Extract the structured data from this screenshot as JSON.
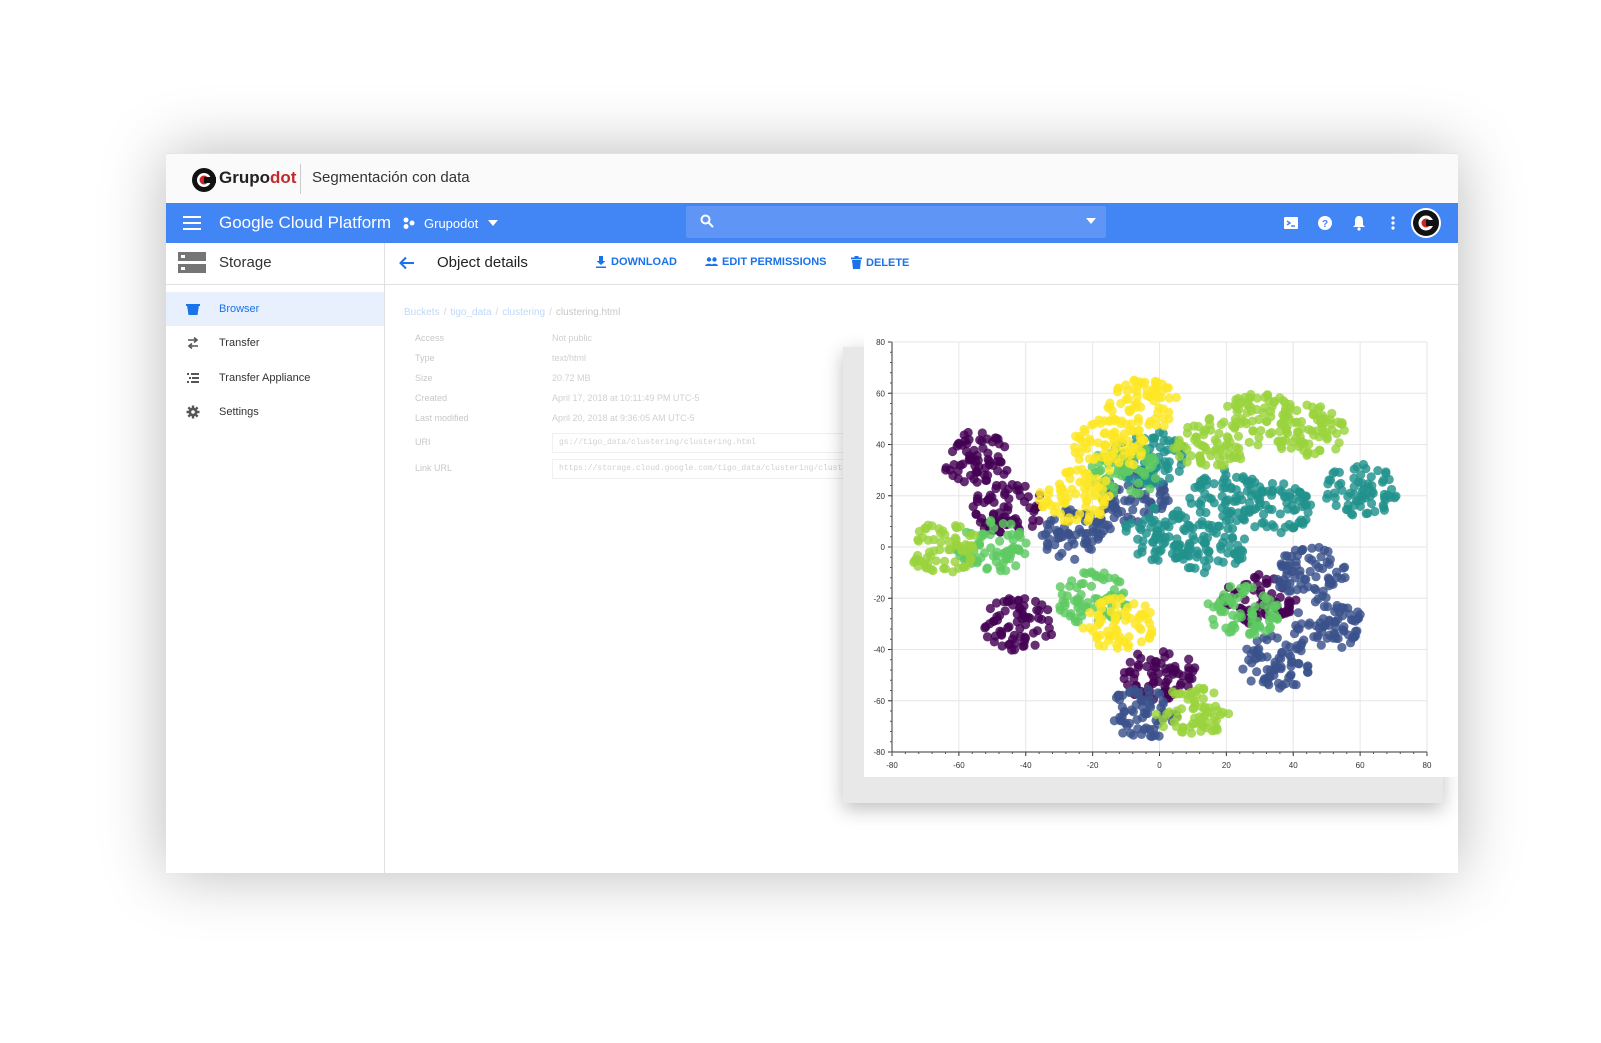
{
  "brand": {
    "name_main": "Grupo",
    "name_accent": "dot",
    "subtitle": "Segmentación con data"
  },
  "header": {
    "title": "Google Cloud Platform",
    "project": "Grupodot",
    "search_placeholder": "",
    "color": "#4285f4",
    "icons": [
      "cloud-shell-icon",
      "help-icon",
      "notifications-icon",
      "more-vert-icon",
      "avatar"
    ]
  },
  "sidebar": {
    "title": "Storage",
    "items": [
      {
        "label": "Browser",
        "icon": "bucket-icon",
        "active": true
      },
      {
        "label": "Transfer",
        "icon": "swap-icon",
        "active": false
      },
      {
        "label": "Transfer Appliance",
        "icon": "appliance-icon",
        "active": false
      },
      {
        "label": "Settings",
        "icon": "gear-icon",
        "active": false
      }
    ]
  },
  "toolbar": {
    "title": "Object details",
    "download": "DOWNLOAD",
    "edit_permissions": "EDIT PERMISSIONS",
    "delete": "DELETE"
  },
  "breadcrumb": [
    "Buckets",
    "tigo_data",
    "clustering",
    "clustering.html"
  ],
  "details": [
    {
      "key": "Access",
      "value": "Not public"
    },
    {
      "key": "Type",
      "value": "text/html"
    },
    {
      "key": "Size",
      "value": "20.72 MB"
    },
    {
      "key": "Created",
      "value": "April 17, 2018 at 10:11:49 PM UTC-5"
    },
    {
      "key": "Last modified",
      "value": "April 20, 2018 at 9:36:05 AM UTC-5"
    },
    {
      "key": "URI",
      "value": "gs://tigo_data/clustering/clustering.html"
    },
    {
      "key": "Link URL",
      "value": "https://storage.cloud.google.com/tigo_data/clustering/clustering.html"
    }
  ],
  "chart_data": {
    "type": "scatter",
    "title": "",
    "xlabel": "",
    "ylabel": "",
    "xlim": [
      -80,
      80
    ],
    "ylim": [
      -80,
      80
    ],
    "xticks": [
      -80,
      -60,
      -40,
      -20,
      0,
      20,
      40,
      60,
      80
    ],
    "yticks": [
      -80,
      -60,
      -40,
      -20,
      0,
      20,
      40,
      60,
      80
    ],
    "grid": true,
    "clusters": [
      {
        "color": "#440154",
        "centers": [
          [
            -45,
            15
          ],
          [
            -42,
            -30
          ],
          [
            0,
            -50
          ],
          [
            -55,
            35
          ],
          [
            30,
            -20
          ]
        ]
      },
      {
        "color": "#3b528b",
        "centers": [
          [
            -25,
            5
          ],
          [
            -8,
            20
          ],
          [
            45,
            -10
          ],
          [
            50,
            -30
          ],
          [
            35,
            -45
          ],
          [
            -5,
            -65
          ]
        ]
      },
      {
        "color": "#21918c",
        "centers": [
          [
            0,
            5
          ],
          [
            15,
            0
          ],
          [
            35,
            15
          ],
          [
            20,
            20
          ],
          [
            -3,
            35
          ],
          [
            60,
            22
          ]
        ]
      },
      {
        "color": "#5ec962",
        "centers": [
          [
            -50,
            0
          ],
          [
            25,
            -25
          ],
          [
            -20,
            -20
          ],
          [
            -10,
            30
          ]
        ]
      },
      {
        "color": "#fde725",
        "centers": [
          [
            -15,
            40
          ],
          [
            -5,
            55
          ],
          [
            -12,
            -30
          ],
          [
            -25,
            20
          ]
        ]
      },
      {
        "color": "#9ad33d",
        "centers": [
          [
            15,
            40
          ],
          [
            30,
            50
          ],
          [
            45,
            45
          ],
          [
            -65,
            0
          ],
          [
            10,
            -65
          ]
        ]
      }
    ]
  }
}
